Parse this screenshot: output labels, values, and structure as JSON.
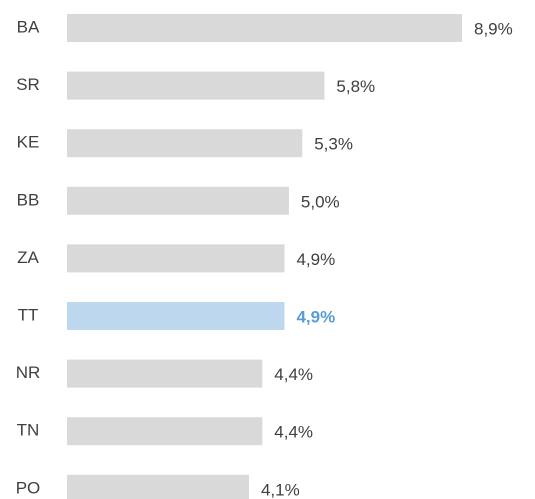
{
  "chart_data": {
    "type": "hbar",
    "categories": [
      "BA",
      "SR",
      "KE",
      "BB",
      "ZA",
      "TT",
      "NR",
      "TN",
      "PO"
    ],
    "values": [
      8.9,
      5.8,
      5.3,
      5.0,
      4.9,
      4.9,
      4.4,
      4.4,
      4.1
    ],
    "value_labels": [
      "8,9%",
      "5,8%",
      "5,3%",
      "5,0%",
      "4,9%",
      "4,9%",
      "4,4%",
      "4,4%",
      "4,1%"
    ],
    "color": "#d9d9d9",
    "highlight_index": 5,
    "highlight_color": "#bdd7ee",
    "highlight_label_color": "#5b9bd5"
  }
}
